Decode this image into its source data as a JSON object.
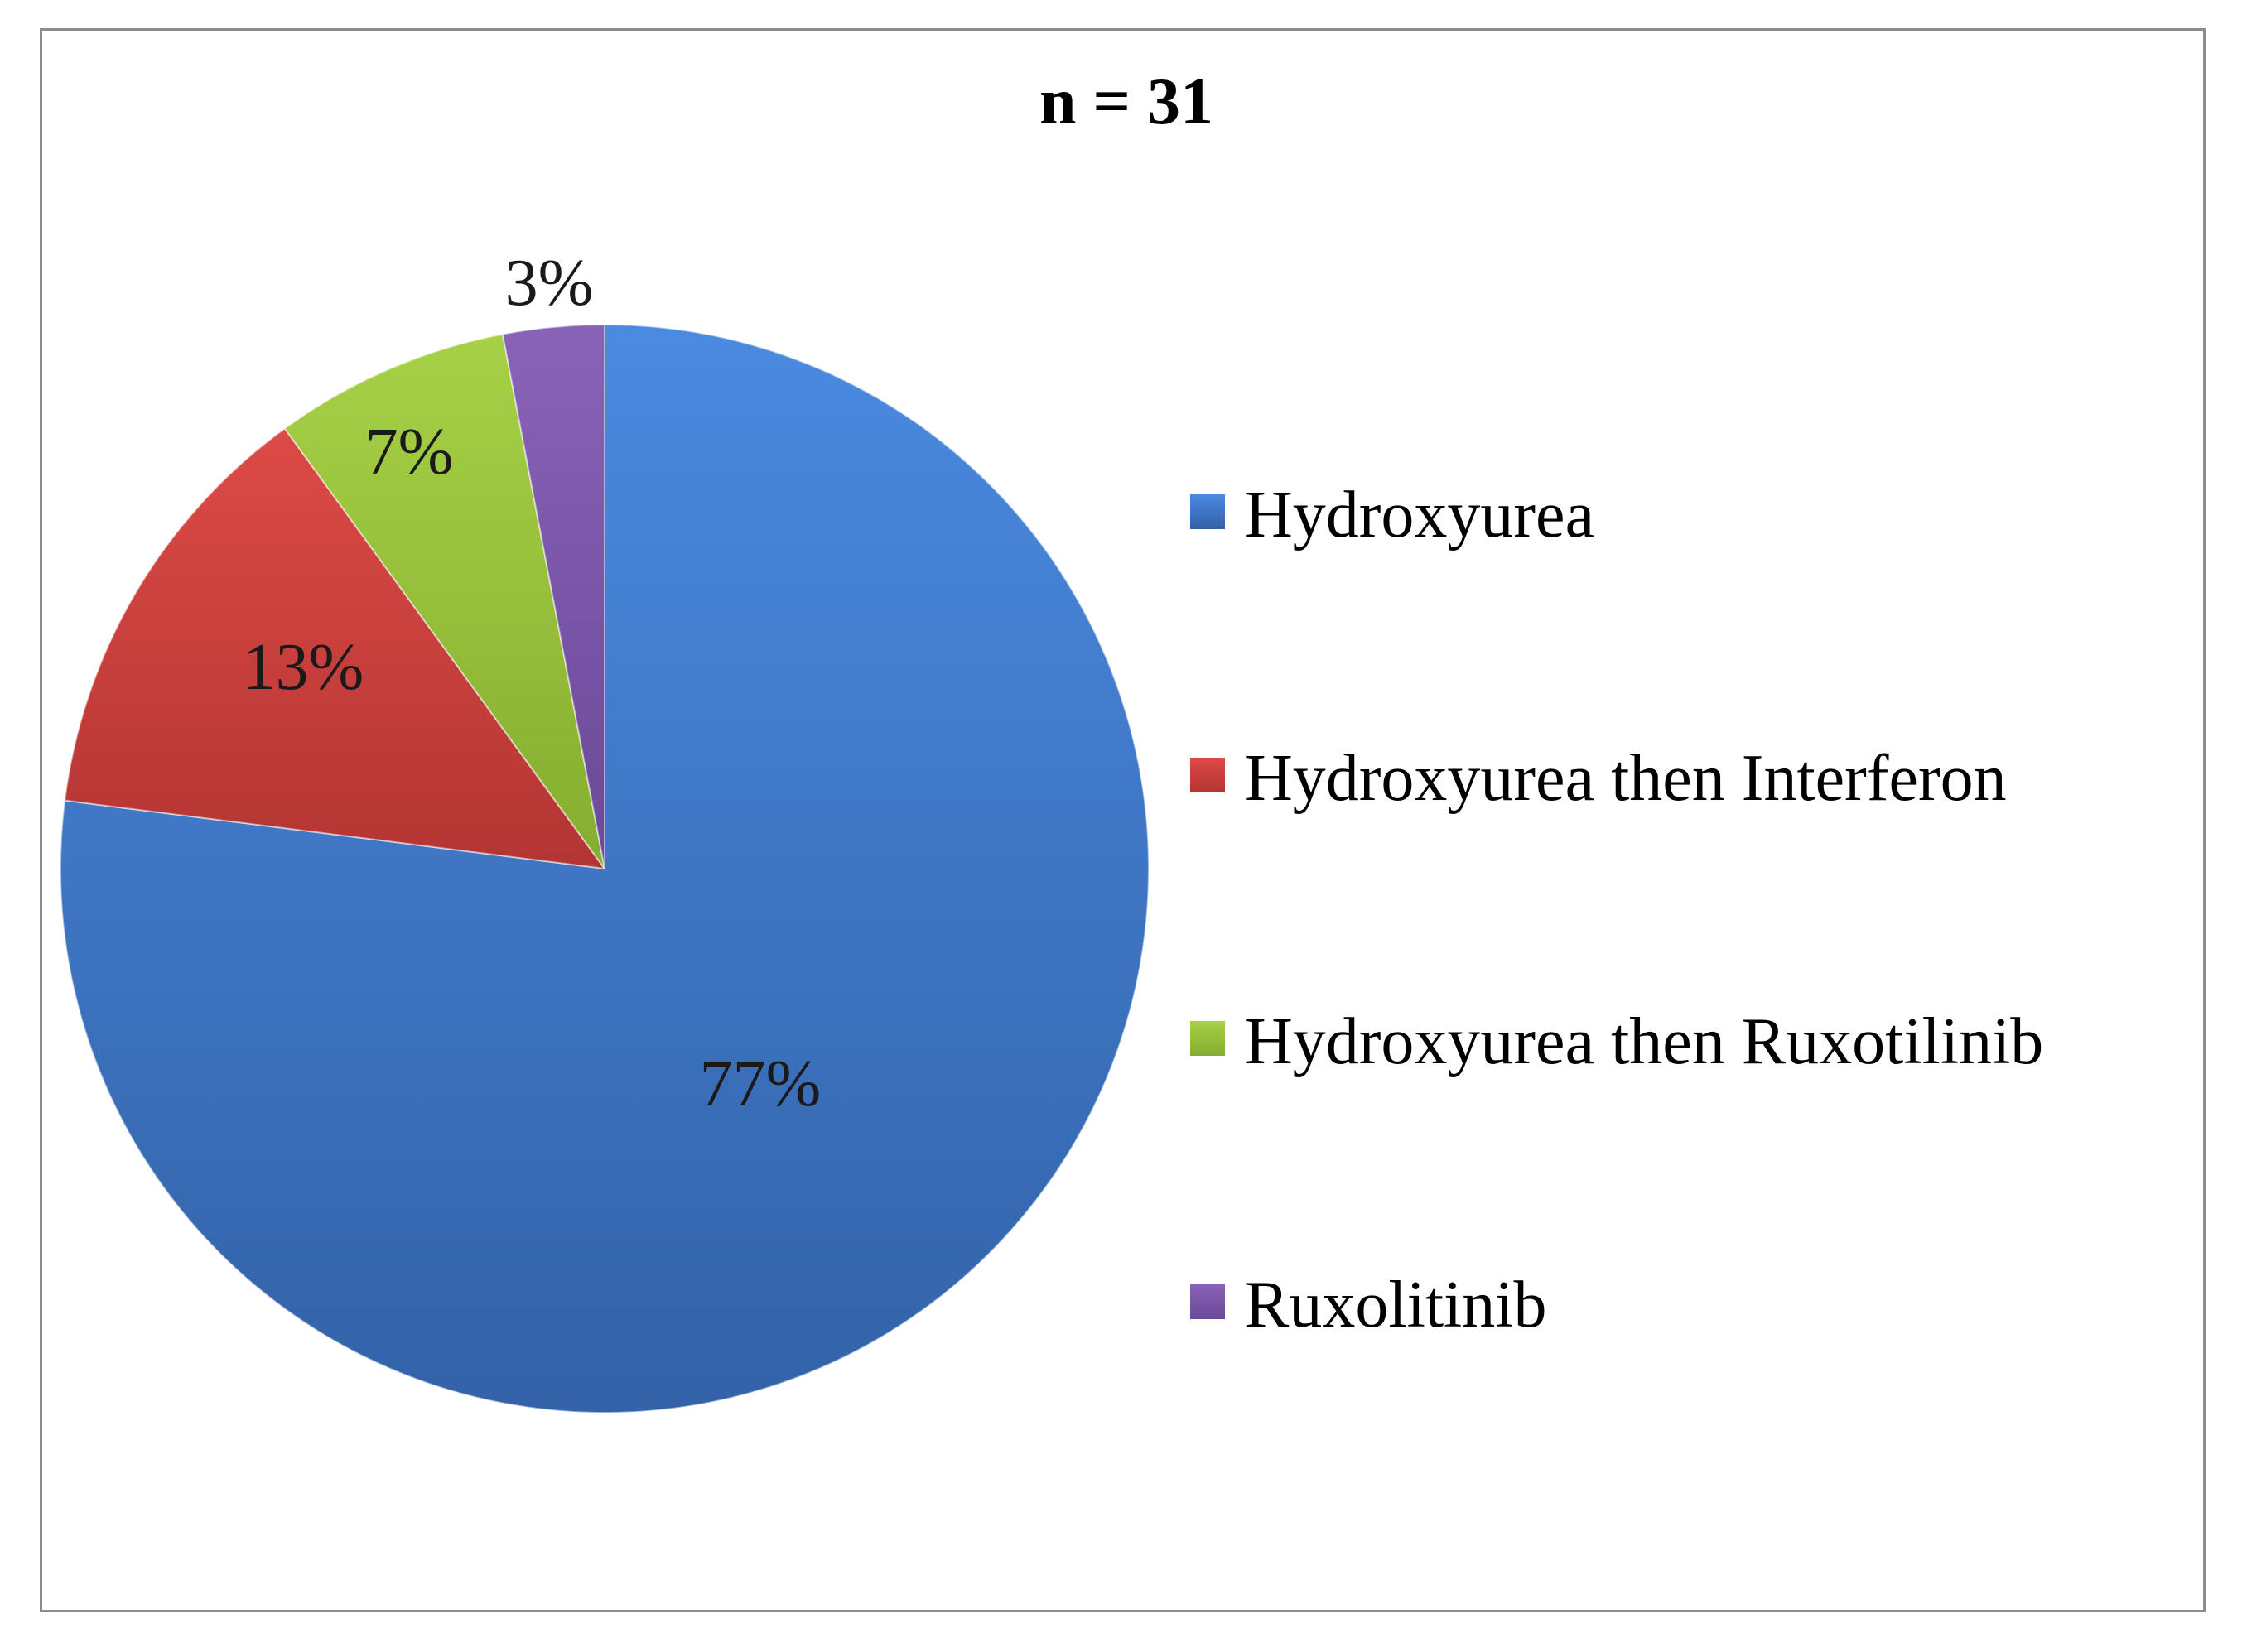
{
  "chart_data": {
    "type": "pie",
    "title": "n = 31",
    "categories": [
      "Hydroxyurea",
      "Hydroxyurea then Interferon",
      "Hydroxyurea then Ruxotilinib",
      "Ruxolitinib"
    ],
    "values": [
      77,
      13,
      7,
      3
    ],
    "labels": [
      "77%",
      "13%",
      "7%",
      "3%"
    ],
    "colors": [
      "#3d7cd0",
      "#cc3f3c",
      "#98c23a",
      "#7b55a8"
    ],
    "legend_position": "right"
  }
}
